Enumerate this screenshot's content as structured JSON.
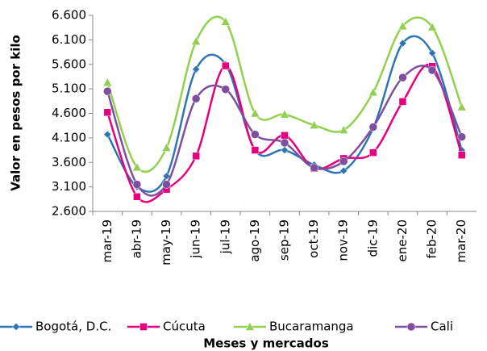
{
  "chart_data": {
    "type": "line",
    "y_label": "Valor en pesos por kilo",
    "x_label": "Meses  y mercados",
    "categories": [
      "mar-19",
      "abr-19",
      "may-19",
      "jun-19",
      "jul-19",
      "ago-19",
      "sep-19",
      "oct-19",
      "nov-19",
      "dic-19",
      "ene-20",
      "feb-20",
      "mar-20"
    ],
    "series": [
      {
        "name": "Bogotá, D.C.",
        "color": "#2e75b6",
        "marker": "diamond",
        "values": [
          4170,
          3100,
          3320,
          5500,
          5600,
          3850,
          3850,
          3550,
          3430,
          4300,
          6030,
          5830,
          3850
        ]
      },
      {
        "name": "Cúcuta",
        "color": "#e6007e",
        "marker": "square",
        "values": [
          4620,
          2900,
          3050,
          3730,
          5570,
          3850,
          4150,
          3480,
          3680,
          3800,
          4840,
          5560,
          3750
        ]
      },
      {
        "name": "Bucaramanga",
        "color": "#92d050",
        "marker": "triangle",
        "values": [
          5230,
          3500,
          3900,
          6070,
          6470,
          4600,
          4580,
          4360,
          4260,
          5030,
          6380,
          6360,
          4730
        ]
      },
      {
        "name": "Cali",
        "color": "#7f4f9f",
        "marker": "circle",
        "values": [
          5050,
          3150,
          3150,
          4900,
          5090,
          4170,
          4000,
          3490,
          3620,
          4320,
          5330,
          5480,
          4120
        ]
      }
    ],
    "ylim": [
      2600,
      6600
    ],
    "yticks": [
      {
        "value": 2600,
        "label": "2.600"
      },
      {
        "value": 3100,
        "label": "3.100"
      },
      {
        "value": 3600,
        "label": "3.600"
      },
      {
        "value": 4100,
        "label": "4.100"
      },
      {
        "value": 4600,
        "label": "4.600"
      },
      {
        "value": 5100,
        "label": "5.100"
      },
      {
        "value": 5600,
        "label": "5.600"
      },
      {
        "value": 6100,
        "label": "6.100"
      },
      {
        "value": 6600,
        "label": "6.600"
      }
    ],
    "grid": false,
    "smooth": true,
    "legend": "bottom"
  }
}
